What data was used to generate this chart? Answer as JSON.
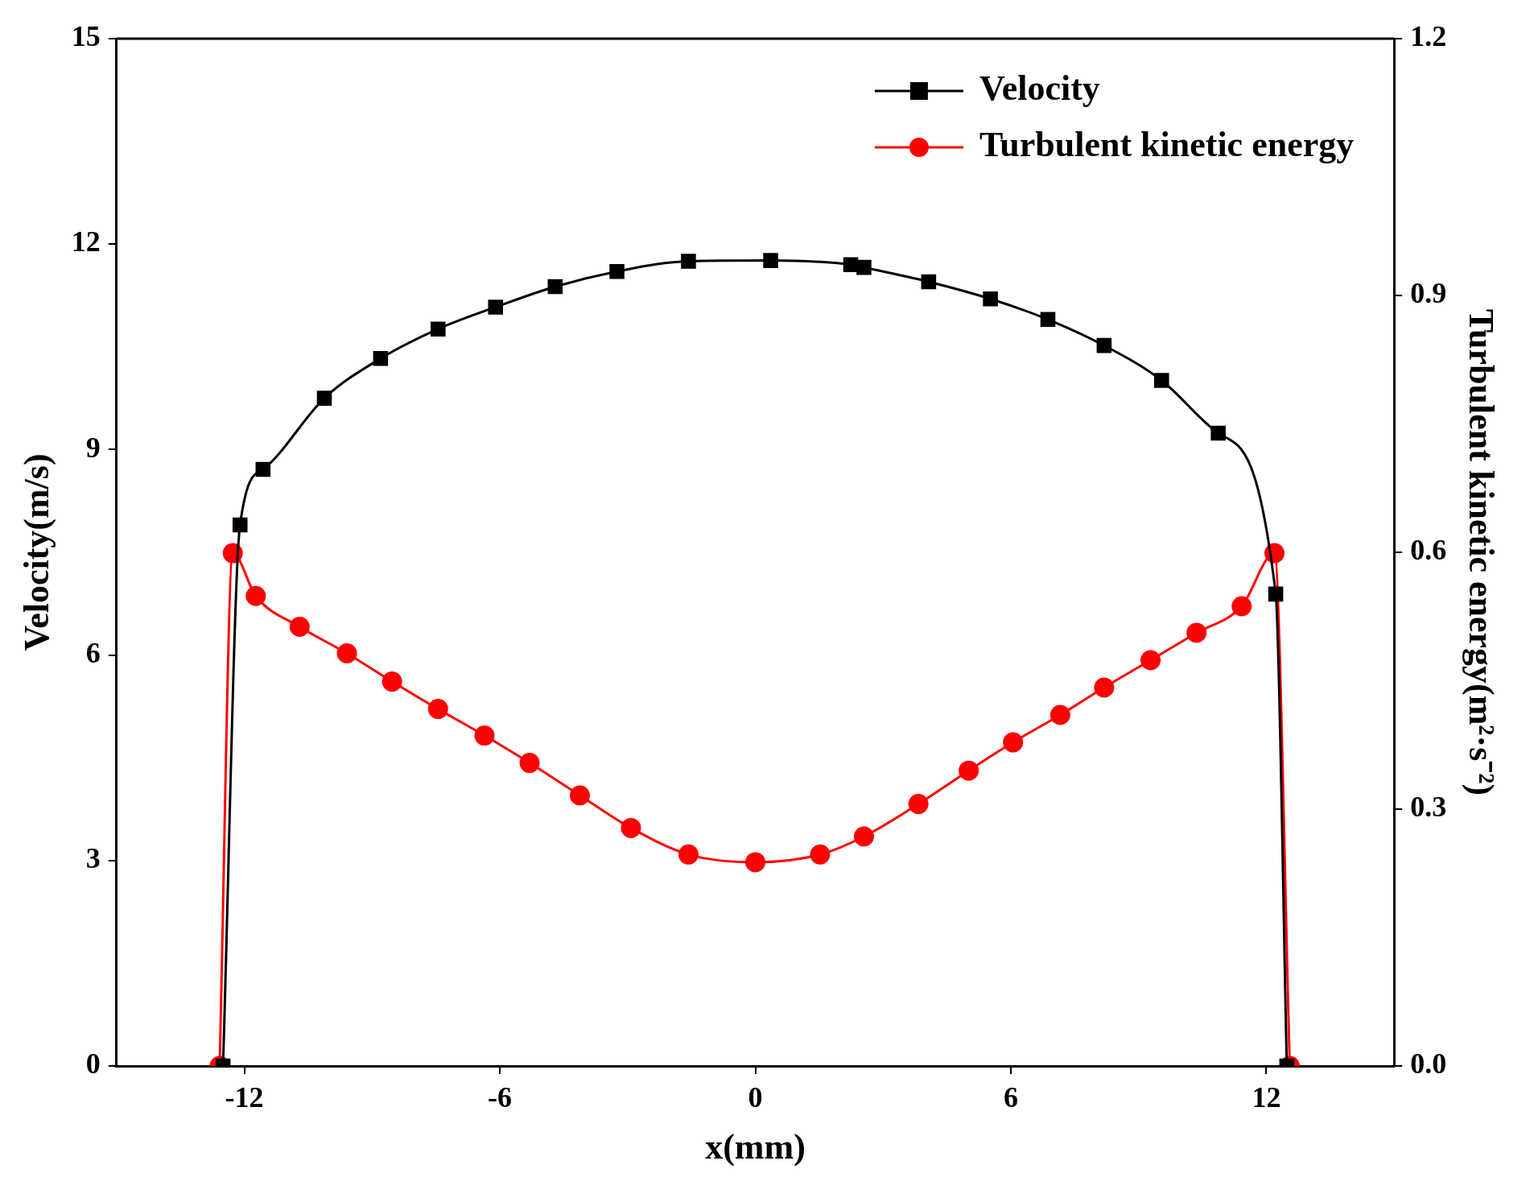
{
  "chart_data": {
    "type": "line",
    "xlabel": "x(mm)",
    "ylabel": "Velocity(m/s)",
    "y2label": "Turbulent kinetic energy(m²·s⁻²)",
    "xlim": [
      -15,
      15
    ],
    "xticks": [
      -12,
      -6,
      0,
      6,
      12
    ],
    "ylim": [
      0,
      15
    ],
    "yticks": [
      0,
      3,
      6,
      9,
      12,
      15
    ],
    "y2lim": [
      0,
      1.2
    ],
    "y2ticks": [
      {
        "value": 0,
        "label": "0.0"
      },
      {
        "value": 0.3,
        "label": "0.3"
      },
      {
        "value": 0.6,
        "label": "0.6"
      },
      {
        "value": 0.9,
        "label": "0.9"
      },
      {
        "value": 1.2,
        "label": "1.2"
      }
    ],
    "grid": false,
    "legend": "top right",
    "line_style": "solid",
    "series": [
      {
        "name": "Velocity",
        "color": "#000000",
        "marker": "square",
        "x": [
          -12.5,
          -12.1,
          -11.56,
          -10.12,
          -8.8,
          -7.45,
          -6.1,
          -4.7,
          -3.25,
          -1.57,
          0.36,
          2.24,
          2.55,
          4.07,
          5.52,
          6.87,
          8.19,
          9.54,
          10.87,
          12.22,
          12.48
        ],
        "values": [
          0,
          7.9,
          8.71,
          9.75,
          10.33,
          10.76,
          11.08,
          11.38,
          11.6,
          11.75,
          11.76,
          11.7,
          11.66,
          11.45,
          11.2,
          10.9,
          10.52,
          10.01,
          9.24,
          6.89,
          0
        ]
      },
      {
        "name": "Turbulent kinetic energy",
        "color": "#ff0000",
        "marker": "circle",
        "axis": "y2",
        "x": [
          -12.58,
          -12.27,
          -11.73,
          -10.7,
          -9.59,
          -8.53,
          -7.45,
          -6.36,
          -5.3,
          -4.12,
          -2.92,
          -1.57,
          0,
          1.52,
          2.55,
          3.83,
          5.01,
          6.05,
          7.16,
          8.19,
          9.28,
          10.36,
          11.42,
          12.19,
          12.55
        ],
        "values": [
          0,
          0.599,
          0.549,
          0.513,
          0.482,
          0.449,
          0.417,
          0.386,
          0.354,
          0.316,
          0.278,
          0.247,
          0.238,
          0.247,
          0.268,
          0.306,
          0.345,
          0.378,
          0.41,
          0.442,
          0.474,
          0.506,
          0.537,
          0.599,
          0
        ]
      }
    ]
  }
}
